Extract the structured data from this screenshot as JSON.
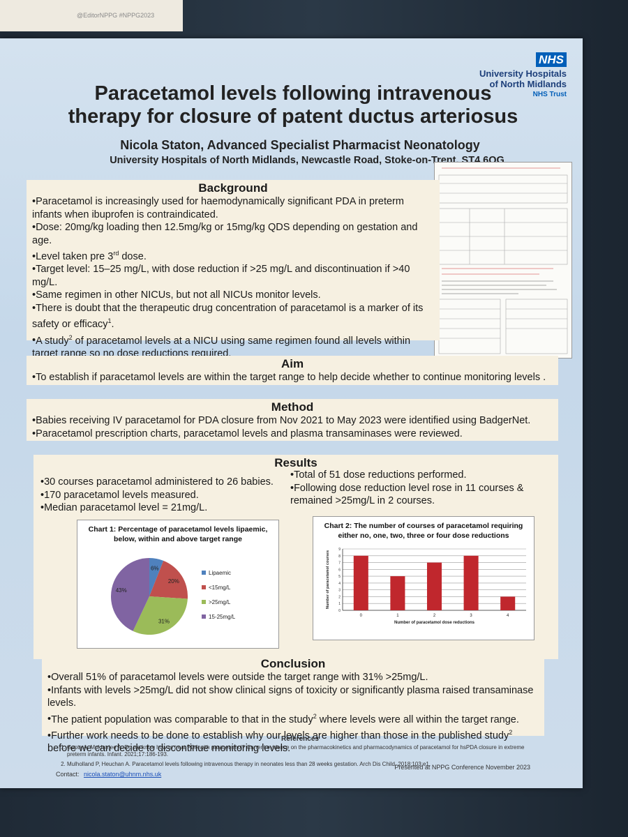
{
  "tag": "@EditorNPPG #NPPG2023",
  "logo": {
    "badge": "NHS",
    "org": "University Hospitals of North Midlands",
    "trust": "NHS Trust"
  },
  "header": {
    "title": "Paracetamol levels following intravenous therapy for closure of patent ductus arteriosus",
    "author": "Nicola Staton, Advanced Specialist Pharmacist Neonatology",
    "affiliation": "University Hospitals of North Midlands, Newcastle Road, Stoke-on-Trent. ST4 6QG"
  },
  "background": {
    "heading": "Background",
    "bullets": [
      [
        "Paracetamol is increasingly used for haemodynamically significant PDA in preterm infants when ibuprofen is contraindicated."
      ],
      [
        "Dose: 20mg/kg loading then 12.5mg/kg or 15mg/kg QDS depending on gestation and age."
      ],
      [
        "Level taken pre 3",
        "rd",
        " dose."
      ],
      [
        "Target level: 15–25 mg/L, with dose reduction if >25 mg/L and discontinuation if >40 mg/L."
      ],
      [
        "Same regimen in other NICUs, but not all NICUs monitor levels."
      ],
      [
        "There is doubt that the therapeutic drug concentration of paracetamol is a marker of its safety or efficacy",
        "1",
        "."
      ],
      [
        "A study",
        "2",
        " of paracetamol levels at a NICU using same regimen found all levels within target range so no dose reductions required."
      ]
    ]
  },
  "aim": {
    "heading": "Aim",
    "bullets": [
      [
        "To establish if paracetamol levels are within the target range to help decide whether to continue monitoring levels ."
      ]
    ]
  },
  "method": {
    "heading": "Method",
    "bullets": [
      [
        "Babies receiving IV paracetamol for PDA closure from Nov 2021 to May 2023 were identified using BadgerNet."
      ],
      [
        "Paracetamol prescription charts, paracetamol levels and plasma transaminases were reviewed."
      ]
    ]
  },
  "results": {
    "heading": "Results",
    "left": [
      [
        "30 courses paracetamol administered to 26 babies."
      ],
      [
        "170 paracetamol levels measured."
      ],
      [
        "Median paracetamol level = 21mg/L."
      ]
    ],
    "right": [
      [
        "Total of 51 dose reductions performed."
      ],
      [
        "Following dose reduction level rose in 11 courses & remained >25mg/L in 2 courses."
      ]
    ]
  },
  "chart_data": [
    {
      "type": "pie",
      "title": "Chart 1: Percentage of paracetamol levels lipaemic, below, within and above target range",
      "categories": [
        "Lipaemic",
        "<15mg/L",
        ">25mg/L",
        "15-25mg/L"
      ],
      "values": [
        6,
        20,
        31,
        43
      ],
      "value_labels": [
        "6%",
        "20%",
        "31%",
        "43%"
      ],
      "colors": [
        "#4f81bd",
        "#c0504d",
        "#9bbb59",
        "#8064a2"
      ],
      "legend": "right"
    },
    {
      "type": "bar",
      "title": "Chart 2: The number of courses of paracetamol requiring either no, one, two, three or four dose reductions",
      "x_label": "Number of paracetamol dose reductions",
      "y_label": "Number of paracetamol courses",
      "categories": [
        "0",
        "1",
        "2",
        "3",
        "4"
      ],
      "values": [
        8,
        5,
        7,
        8,
        2
      ],
      "color": "#c0272d",
      "ylim": [
        0,
        9
      ],
      "yticks": [
        0,
        1,
        2,
        3,
        4,
        5,
        6,
        7,
        8,
        9
      ],
      "grid": true
    }
  ],
  "conclusion": {
    "heading": "Conclusion",
    "bullets": [
      [
        "Overall 51% of paracetamol levels were outside the target range with 31% >25mg/L."
      ],
      [
        "Infants with levels >25mg/L did not show clinical signs of toxicity or significantly  plasma raised transaminase levels."
      ],
      [
        "The patient population was comparable to that in the study",
        "2",
        " where levels were all within the target range."
      ],
      [
        "Further work needs to be done to establish why our levels are higher than those in the published study",
        "2",
        " before we can decide to discontinue monitoring levels."
      ]
    ]
  },
  "references": {
    "heading": "References",
    "items": [
      "Gupta A, Mukherjee A. Do we know how to treat PDA with paracetamol? Current evidence on the pharmacokinetics and pharmacodynamics of paracetamol for hsPDA closure in extreme preterm infants. Infant. 2021;17:186-193.",
      "Mulholland P, Heuchan A. Paracetamol levels following intravenous therapy in neonates less than 28 weeks gestation. Arch Dis Child. 2018;103:e1."
    ],
    "contact_label": "Contact:",
    "contact": "nicola.staton@uhnm.nhs.uk",
    "presented": "Presented at NPPG Conference November 2023"
  }
}
